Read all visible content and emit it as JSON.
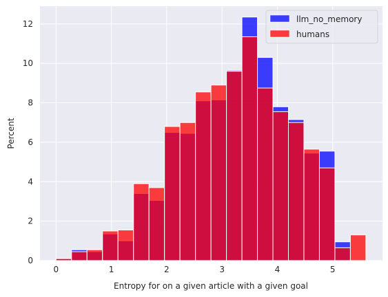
{
  "chart_data": {
    "type": "bar",
    "xlabel": "Entropy for on a given article with a given goal",
    "ylabel": "Percent",
    "xlim": [
      -0.29,
      5.9
    ],
    "ylim": [
      0,
      12.9
    ],
    "xticks": [
      0,
      1,
      2,
      3,
      4,
      5
    ],
    "yticks": [
      0,
      2,
      4,
      6,
      8,
      10,
      12
    ],
    "grid": true,
    "legend_position": "top-right",
    "bin_edges": [
      0,
      0.28,
      0.56,
      0.84,
      1.12,
      1.4,
      1.68,
      1.96,
      2.24,
      2.52,
      2.8,
      3.08,
      3.36,
      3.64,
      3.92,
      4.2,
      4.48,
      4.76,
      5.04,
      5.32,
      5.6
    ],
    "series": [
      {
        "name": "llm_no_memory",
        "color": "#0000ff",
        "values": [
          0.1,
          0.55,
          0.45,
          1.35,
          1.0,
          3.4,
          3.05,
          6.5,
          6.45,
          8.1,
          8.15,
          9.65,
          12.35,
          10.3,
          7.8,
          7.15,
          5.45,
          5.55,
          0.95,
          0.0
        ]
      },
      {
        "name": "humans",
        "color": "#ff0000",
        "values": [
          0.1,
          0.45,
          0.55,
          1.5,
          1.55,
          3.9,
          3.7,
          6.8,
          7.0,
          8.55,
          8.9,
          9.6,
          11.35,
          8.75,
          7.55,
          7.0,
          5.65,
          4.7,
          0.65,
          1.3
        ]
      }
    ]
  }
}
